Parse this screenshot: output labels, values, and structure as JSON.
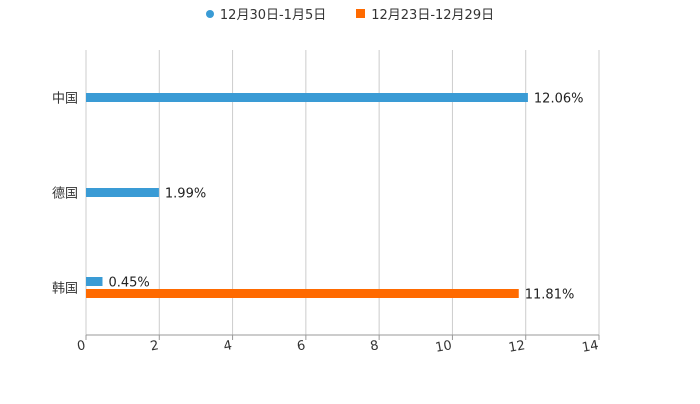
{
  "chart_data": {
    "type": "bar",
    "orientation": "horizontal",
    "categories": [
      "中国",
      "德国",
      "韩国"
    ],
    "series": [
      {
        "name": "12月30日-1月5日",
        "values": [
          12.06,
          1.99,
          0.45
        ],
        "labels": [
          "12.06%",
          "1.99%",
          "0.45%"
        ],
        "color": "#3a9bd5",
        "marker": "circle"
      },
      {
        "name": "12月23日-12月29日",
        "values": [
          null,
          null,
          11.81
        ],
        "labels": [
          "",
          "",
          "11.81%"
        ],
        "color": "#ff6a00",
        "marker": "square"
      }
    ],
    "xlim": [
      0,
      14
    ],
    "xticks": [
      0,
      2,
      4,
      6,
      8,
      10,
      12,
      14
    ],
    "xtick_labels": [
      "0",
      "2",
      "4",
      "6",
      "8",
      "10",
      "12",
      "14"
    ],
    "grid": true,
    "legend_position": "top-center",
    "title": "",
    "xlabel": "",
    "ylabel": ""
  }
}
